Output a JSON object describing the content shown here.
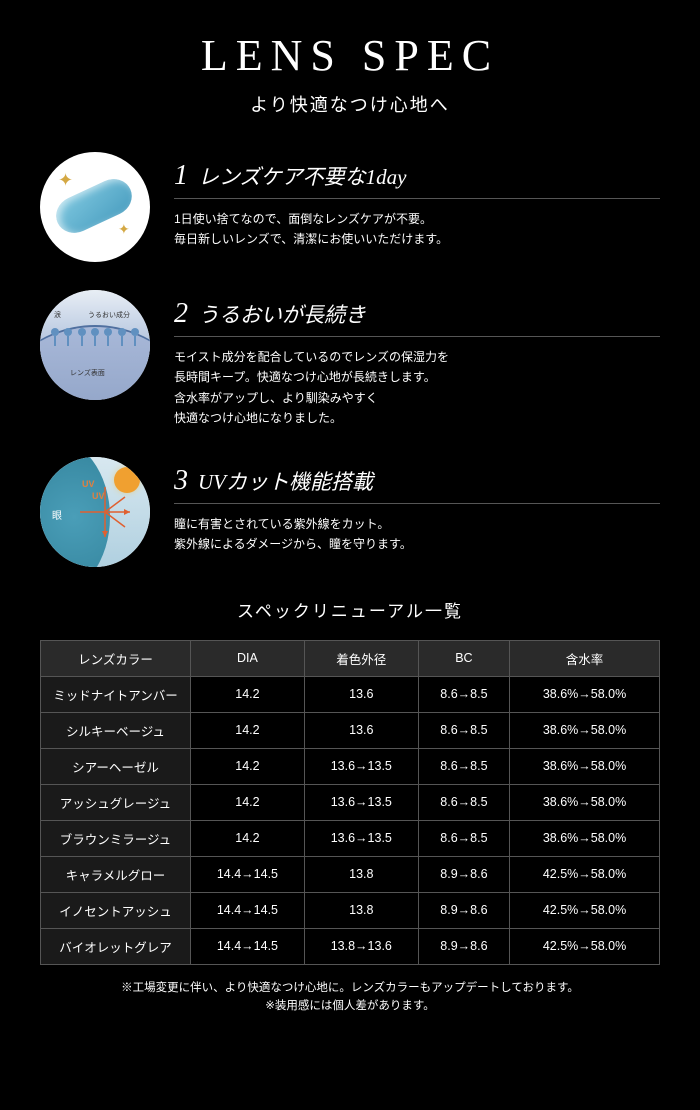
{
  "header": {
    "title": "LENS SPEC",
    "subtitle": "より快適なつけ心地へ"
  },
  "features": [
    {
      "num": "1",
      "title": "レンズケア不要な1day",
      "desc": "1日使い捨てなので、面倒なレンズケアが不要。\n毎日新しいレンズで、清潔にお使いいただけます。"
    },
    {
      "num": "2",
      "title": "うるおいが長続き",
      "desc": "モイスト成分を配合しているのでレンズの保湿力を\n長時間キープ。快適なつけ心地が長続きします。\n含水率がアップし、より馴染みやすく\n快適なつけ心地になりました。",
      "labels": {
        "l1": "涙",
        "l2": "うるおい成分",
        "l3": "レンズ表面"
      }
    },
    {
      "num": "3",
      "title": "UVカット機能搭載",
      "desc": "瞳に有害とされている紫外線をカット。\n紫外線によるダメージから、瞳を守ります。",
      "eye_label": "眼",
      "uv_label": "UV"
    }
  ],
  "table": {
    "title": "スペックリニューアル一覧",
    "columns": [
      "レンズカラー",
      "DIA",
      "着色外径",
      "BC",
      "含水率"
    ],
    "rows": [
      [
        "ミッドナイトアンバー",
        "14.2",
        "13.6",
        "8.6→8.5",
        "38.6%→58.0%"
      ],
      [
        "シルキーベージュ",
        "14.2",
        "13.6",
        "8.6→8.5",
        "38.6%→58.0%"
      ],
      [
        "シアーヘーゼル",
        "14.2",
        "13.6→13.5",
        "8.6→8.5",
        "38.6%→58.0%"
      ],
      [
        "アッシュグレージュ",
        "14.2",
        "13.6→13.5",
        "8.6→8.5",
        "38.6%→58.0%"
      ],
      [
        "ブラウンミラージュ",
        "14.2",
        "13.6→13.5",
        "8.6→8.5",
        "38.6%→58.0%"
      ],
      [
        "キャラメルグロー",
        "14.4→14.5",
        "13.8",
        "8.9→8.6",
        "42.5%→58.0%"
      ],
      [
        "イノセントアッシュ",
        "14.4→14.5",
        "13.8",
        "8.9→8.6",
        "42.5%→58.0%"
      ],
      [
        "バイオレットグレア",
        "14.4→14.5",
        "13.8→13.6",
        "8.9→8.6",
        "42.5%→58.0%"
      ]
    ]
  },
  "footnote": "※工場変更に伴い、より快適なつけ心地に。レンズカラーもアップデートしております。\n※装用感には個人差があります。"
}
